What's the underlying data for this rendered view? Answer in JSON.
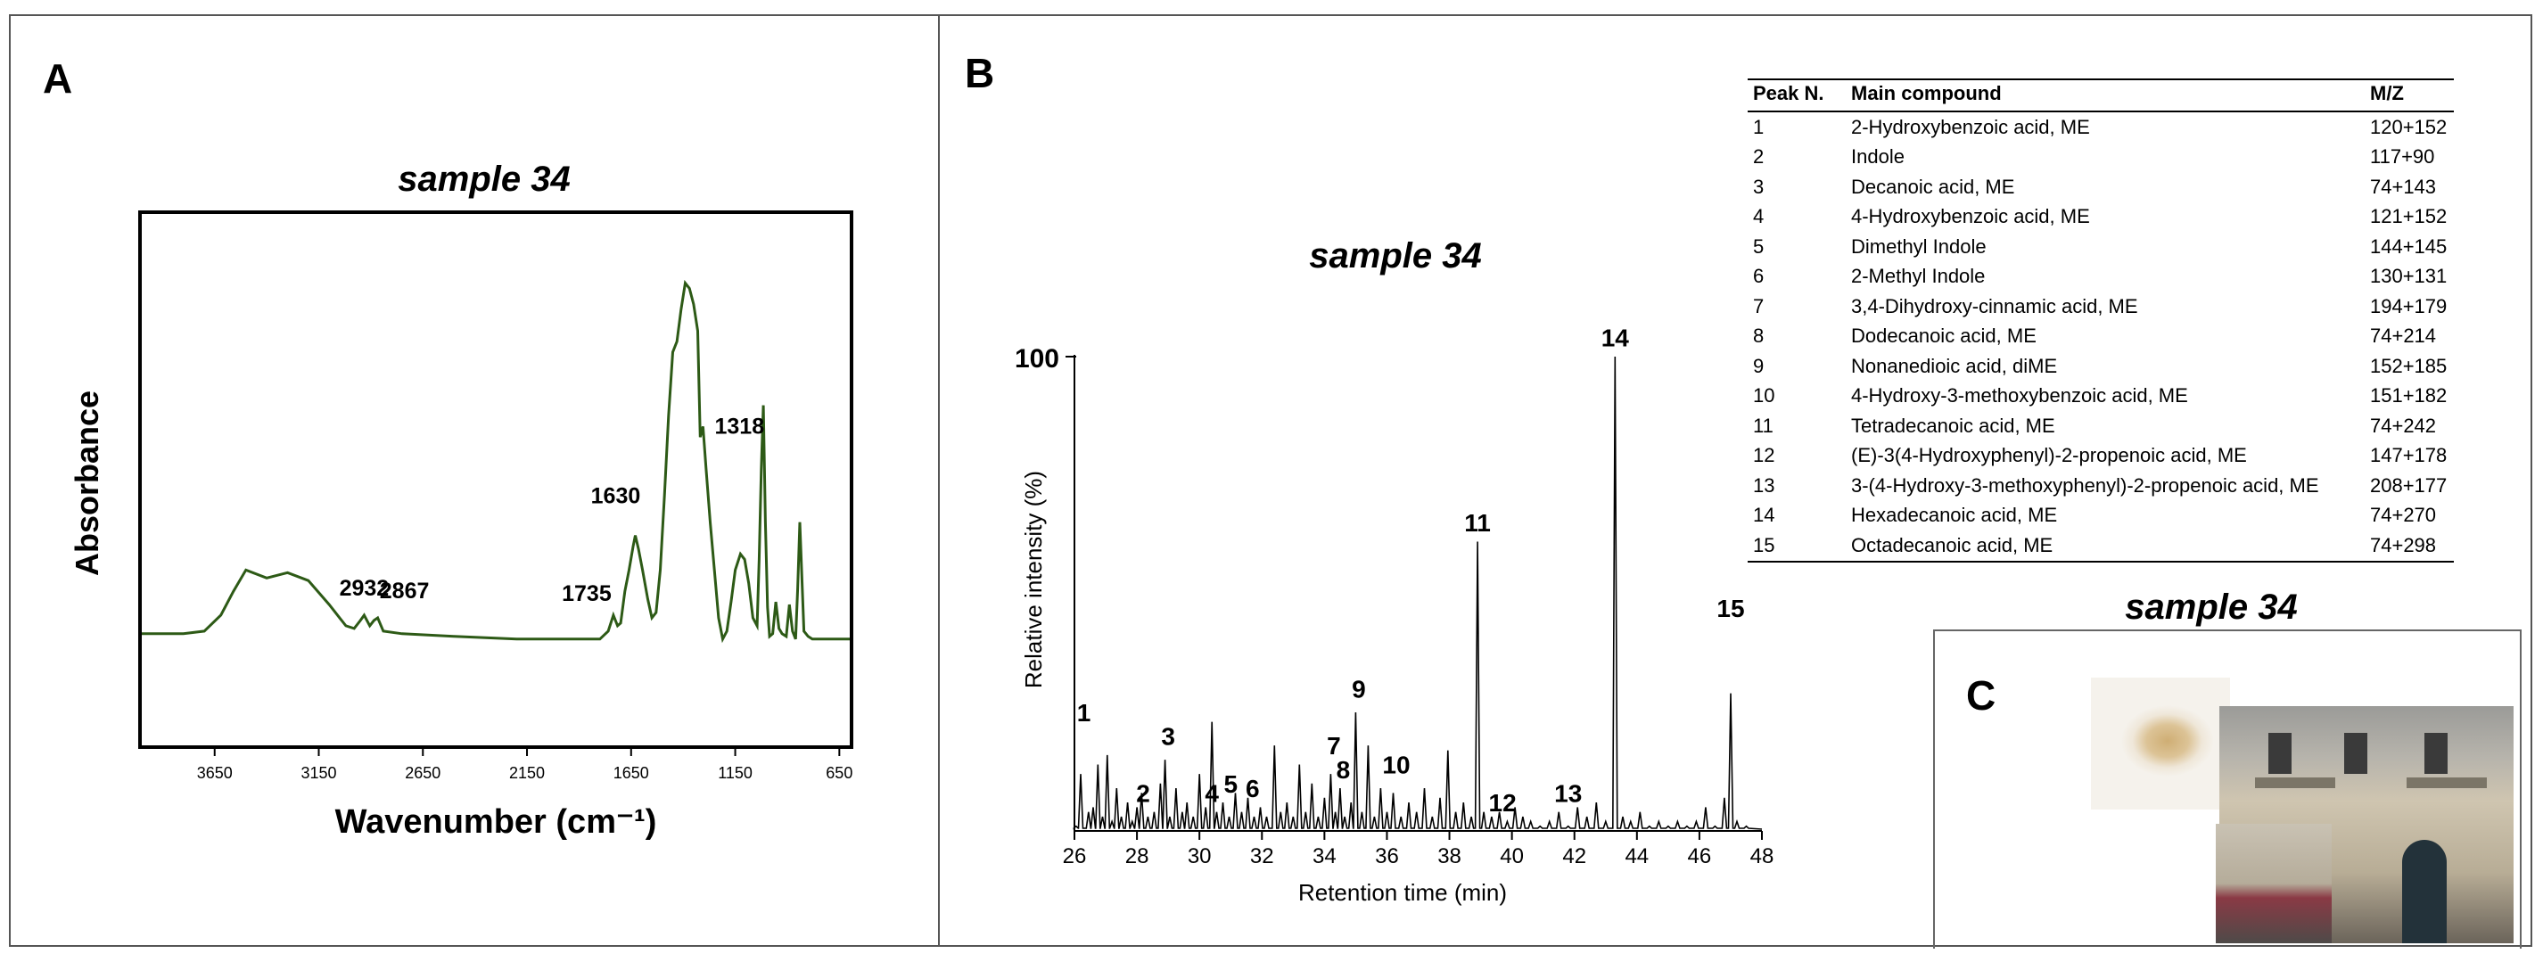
{
  "panel_a": {
    "label": "A",
    "title": "sample 34",
    "chart_data": {
      "type": "line",
      "title": "sample 34",
      "xlabel": "Wavenumber (cm⁻¹)",
      "ylabel": "Absorbance",
      "xlim": [
        4000,
        600
      ],
      "ylim": [
        0,
        1
      ],
      "x_ticks": [
        3650,
        3150,
        2650,
        2150,
        1650,
        1150,
        650
      ],
      "x_tick_labels": [
        "3650",
        "3150",
        "2650",
        "2150",
        "1650",
        "1150",
        "650"
      ],
      "line_color": "#2d5a16",
      "series": [
        {
          "name": "FTIR spectrum",
          "x": [
            4000,
            3800,
            3700,
            3620,
            3560,
            3500,
            3400,
            3300,
            3200,
            3100,
            3020,
            2980,
            2950,
            2932,
            2905,
            2885,
            2867,
            2840,
            2750,
            2500,
            2200,
            1900,
            1800,
            1760,
            1735,
            1715,
            1700,
            1680,
            1660,
            1640,
            1630,
            1615,
            1595,
            1570,
            1550,
            1530,
            1510,
            1490,
            1470,
            1450,
            1430,
            1410,
            1390,
            1370,
            1350,
            1330,
            1318,
            1305,
            1290,
            1270,
            1250,
            1230,
            1210,
            1190,
            1170,
            1150,
            1125,
            1105,
            1085,
            1065,
            1045,
            1035,
            1025,
            1015,
            1005,
            995,
            985,
            970,
            955,
            940,
            925,
            905,
            890,
            875,
            860,
            850,
            840,
            820,
            800,
            780,
            720,
            650,
            600
          ],
          "y": [
            0.21,
            0.21,
            0.215,
            0.245,
            0.29,
            0.33,
            0.315,
            0.325,
            0.31,
            0.265,
            0.225,
            0.22,
            0.235,
            0.245,
            0.225,
            0.235,
            0.24,
            0.215,
            0.21,
            0.205,
            0.2,
            0.2,
            0.2,
            0.215,
            0.245,
            0.225,
            0.23,
            0.29,
            0.33,
            0.375,
            0.395,
            0.37,
            0.33,
            0.275,
            0.24,
            0.25,
            0.33,
            0.47,
            0.62,
            0.74,
            0.76,
            0.82,
            0.87,
            0.86,
            0.83,
            0.78,
            0.58,
            0.6,
            0.52,
            0.42,
            0.33,
            0.24,
            0.2,
            0.215,
            0.27,
            0.33,
            0.36,
            0.35,
            0.305,
            0.24,
            0.225,
            0.35,
            0.52,
            0.64,
            0.42,
            0.26,
            0.205,
            0.21,
            0.27,
            0.22,
            0.21,
            0.205,
            0.265,
            0.215,
            0.2,
            0.295,
            0.42,
            0.215,
            0.205,
            0.2,
            0.2,
            0.2,
            0.2
          ]
        }
      ],
      "annotations": [
        {
          "text": "2932",
          "x": 2932
        },
        {
          "text": "2867",
          "x": 2867
        },
        {
          "text": "1735",
          "x": 1735
        },
        {
          "text": "1630",
          "x": 1630
        },
        {
          "text": "1318",
          "x": 1318
        }
      ]
    }
  },
  "panel_b": {
    "label": "B",
    "title": "sample 34",
    "chart_data": {
      "type": "line",
      "title": "sample 34",
      "xlabel": "Retention time (min)",
      "ylabel": "Relative intensity (%)",
      "xlim": [
        26,
        48
      ],
      "ylim": [
        0,
        100
      ],
      "x_ticks": [
        26,
        28,
        30,
        32,
        34,
        36,
        38,
        40,
        42,
        44,
        46,
        48
      ],
      "x_tick_labels": [
        "26",
        "28",
        "30",
        "32",
        "34",
        "36",
        "38",
        "40",
        "42",
        "44",
        "46",
        "48"
      ],
      "y_tick_label": "100",
      "series": [
        {
          "name": "chromatogram",
          "x": [
            26.05,
            26.2,
            26.45,
            26.6,
            26.75,
            26.9,
            27.05,
            27.2,
            27.35,
            27.5,
            27.7,
            27.85,
            28.0,
            28.15,
            28.35,
            28.55,
            28.75,
            28.9,
            29.05,
            29.25,
            29.45,
            29.6,
            29.8,
            30.0,
            30.2,
            30.4,
            30.55,
            30.75,
            30.95,
            31.15,
            31.35,
            31.55,
            31.75,
            31.95,
            32.15,
            32.4,
            32.6,
            32.8,
            33.0,
            33.2,
            33.4,
            33.6,
            33.8,
            34.0,
            34.2,
            34.35,
            34.5,
            34.65,
            34.85,
            35.0,
            35.2,
            35.4,
            35.6,
            35.8,
            36.0,
            36.2,
            36.45,
            36.7,
            36.95,
            37.2,
            37.45,
            37.7,
            37.95,
            38.2,
            38.45,
            38.7,
            38.9,
            39.1,
            39.35,
            39.6,
            39.85,
            40.1,
            40.35,
            40.6,
            40.9,
            41.2,
            41.5,
            41.8,
            42.1,
            42.4,
            42.7,
            43.0,
            43.3,
            43.55,
            43.8,
            44.1,
            44.4,
            44.7,
            45.0,
            45.3,
            45.6,
            45.9,
            46.2,
            46.5,
            46.8,
            47.0,
            47.2,
            47.5
          ],
          "y": [
            1,
            12,
            4,
            5,
            14,
            3,
            16,
            2,
            9,
            3,
            6,
            2,
            5,
            8,
            3,
            4,
            10,
            15,
            3,
            9,
            4,
            6,
            3,
            12,
            5,
            23,
            4,
            6,
            3,
            8,
            4,
            7,
            3,
            5,
            3,
            18,
            4,
            6,
            3,
            14,
            4,
            10,
            3,
            7,
            12,
            4,
            9,
            3,
            6,
            25,
            4,
            18,
            3,
            9,
            4,
            8,
            3,
            6,
            4,
            9,
            3,
            7,
            17,
            4,
            6,
            3,
            61,
            4,
            3,
            4,
            2,
            5,
            3,
            2,
            1,
            2,
            4,
            1,
            5,
            3,
            6,
            2,
            100,
            3,
            2,
            4,
            1,
            2,
            1,
            2,
            1,
            2,
            5,
            1,
            7,
            29,
            2,
            1
          ]
        }
      ],
      "peak_labels": [
        {
          "label": "1",
          "x": 26.3,
          "y": 22
        },
        {
          "label": "2",
          "x": 28.2,
          "y": 5
        },
        {
          "label": "3",
          "x": 29.0,
          "y": 17
        },
        {
          "label": "4",
          "x": 30.4,
          "y": 5
        },
        {
          "label": "5",
          "x": 31.0,
          "y": 7
        },
        {
          "label": "6",
          "x": 31.7,
          "y": 6
        },
        {
          "label": "7",
          "x": 34.3,
          "y": 15
        },
        {
          "label": "8",
          "x": 34.6,
          "y": 10
        },
        {
          "label": "9",
          "x": 35.1,
          "y": 27
        },
        {
          "label": "10",
          "x": 36.3,
          "y": 11
        },
        {
          "label": "11",
          "x": 38.9,
          "y": 62
        },
        {
          "label": "12",
          "x": 39.7,
          "y": 3
        },
        {
          "label": "13",
          "x": 41.8,
          "y": 5
        },
        {
          "label": "14",
          "x": 43.3,
          "y": 101
        },
        {
          "label": "15",
          "x": 47.0,
          "y": 44
        }
      ]
    },
    "table": {
      "headers": [
        "Peak N.",
        "Main compound",
        "M/Z"
      ],
      "rows": [
        [
          "1",
          "2-Hydroxybenzoic acid, ME",
          "120+152"
        ],
        [
          "2",
          "Indole",
          "117+90"
        ],
        [
          "3",
          "Decanoic acid, ME",
          "74+143"
        ],
        [
          "4",
          "4-Hydroxybenzoic acid, ME",
          "121+152"
        ],
        [
          "5",
          "Dimethyl Indole",
          "144+145"
        ],
        [
          "6",
          "2-Methyl Indole",
          "130+131"
        ],
        [
          "7",
          "3,4-Dihydroxy-cinnamic acid, ME",
          "194+179"
        ],
        [
          "8",
          "Dodecanoic acid, ME",
          "74+214"
        ],
        [
          "9",
          "Nonanedioic acid, diME",
          "152+185"
        ],
        [
          "10",
          "4-Hydroxy-3-methoxybenzoic acid, ME",
          "151+182"
        ],
        [
          "11",
          "Tetradecanoic acid, ME",
          "74+242"
        ],
        [
          "12",
          "(E)-3(4-Hydroxyphenyl)-2-propenoic acid, ME",
          "147+178"
        ],
        [
          "13",
          "3-(4-Hydroxy-3-methoxyphenyl)-2-propenoic acid, ME",
          "208+177"
        ],
        [
          "14",
          "Hexadecanoic acid, ME",
          "74+270"
        ],
        [
          "15",
          "Octadecanoic acid, ME",
          "74+298"
        ]
      ]
    }
  },
  "panel_c": {
    "label": "C",
    "title": "sample 34"
  }
}
